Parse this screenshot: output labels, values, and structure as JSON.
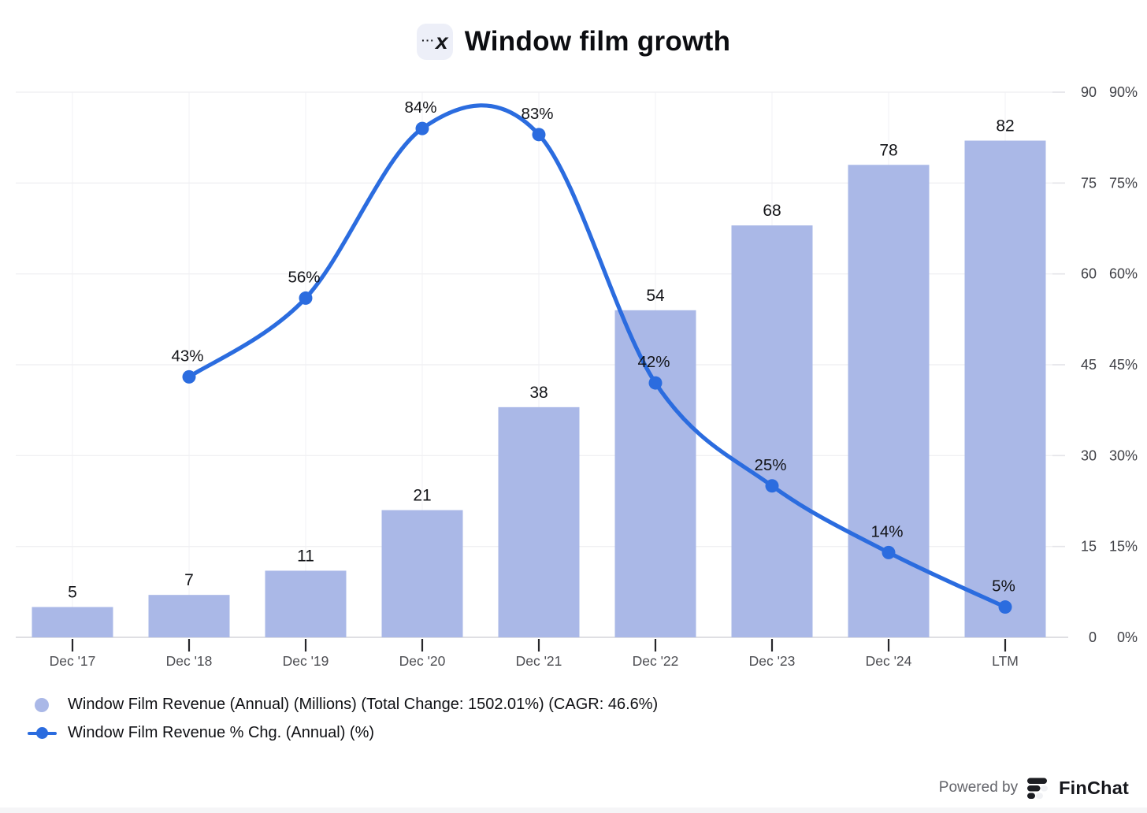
{
  "header": {
    "icon": {
      "dots": "···",
      "letter": "x"
    },
    "title": "Window film growth"
  },
  "chart_data": {
    "type": "bar",
    "combo": "bar+line",
    "title": "Window film growth",
    "categories": [
      "Dec '17",
      "Dec '18",
      "Dec '19",
      "Dec '20",
      "Dec '21",
      "Dec '22",
      "Dec '23",
      "Dec '24",
      "LTM"
    ],
    "series": [
      {
        "name": "Window Film Revenue (Annual) (Millions)",
        "type": "bar",
        "color": "#aab8e7",
        "values": [
          5,
          7,
          11,
          21,
          38,
          54,
          68,
          78,
          82
        ],
        "data_labels": [
          "5",
          "7",
          "11",
          "21",
          "38",
          "54",
          "68",
          "78",
          "82"
        ]
      },
      {
        "name": "Window Film Revenue % Chg. (Annual) (%)",
        "type": "line",
        "color": "#2b6cdf",
        "values": [
          null,
          43,
          56,
          84,
          83,
          42,
          25,
          14,
          5
        ],
        "data_labels": [
          null,
          "43%",
          "56%",
          "84%",
          "83%",
          "42%",
          "25%",
          "14%",
          "5%"
        ]
      }
    ],
    "y_axis": {
      "side": "right",
      "min": 0,
      "max": 90,
      "step": 15,
      "revenue_tick_labels": [
        "90",
        "75",
        "60",
        "45",
        "30",
        "15",
        "0"
      ],
      "pct_tick_labels": [
        "90%",
        "75%",
        "60%",
        "45%",
        "30%",
        "15%",
        "0%"
      ],
      "tick_values": [
        90,
        75,
        60,
        45,
        30,
        15,
        0
      ]
    },
    "grid": true,
    "legend_position": "bottom-left"
  },
  "legend": {
    "items": [
      {
        "marker": "circle",
        "color": "#aab8e7",
        "label": "Window Film Revenue (Annual) (Millions) (Total Change: 1502.01%) (CAGR: 46.6%)"
      },
      {
        "marker": "line-dot",
        "color": "#2b6cdf",
        "label": "Window Film Revenue % Chg. (Annual) (%)"
      }
    ]
  },
  "footer": {
    "powered_by_label": "Powered by",
    "brand_name": "FinChat"
  }
}
